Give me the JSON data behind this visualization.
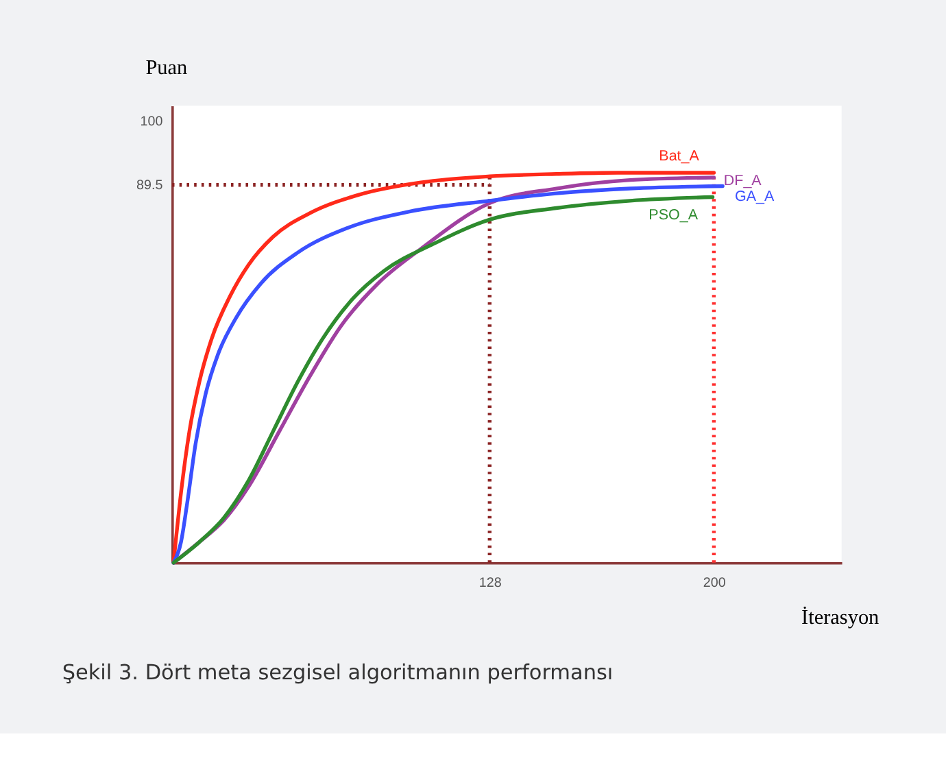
{
  "chart_data": {
    "type": "line",
    "xlabel": "İterasyon",
    "ylabel": "Puan",
    "annotations": [
      "Şekil 3. Dört meta sezgisel algoritmanın performansı"
    ],
    "xlim": [
      26,
      241
    ],
    "ylim": [
      27.5,
      102.5
    ],
    "xticks": [
      128,
      200
    ],
    "yticks": [
      89.5,
      100
    ],
    "grid": false,
    "marker": "none",
    "line_style": "solid",
    "series": [
      {
        "name": "Bat_A",
        "color": "#ff2a1a",
        "x": [
          26.5,
          28.9,
          31.6,
          34.8,
          38.7,
          44.7,
          50.6,
          58.5,
          70.4,
          86.2,
          105.9,
          128,
          149.4,
          169.2,
          200
        ],
        "values": [
          27.5,
          39.0,
          49.1,
          57.2,
          64.2,
          71.3,
          76.4,
          81.0,
          84.9,
          87.9,
          89.9,
          90.9,
          91.3,
          91.5,
          91.5
        ]
      },
      {
        "name": "DF_A",
        "color": "#a040a0",
        "x": [
          26.5,
          34.8,
          42.7,
          50.6,
          60.5,
          70.4,
          80.2,
          92.1,
          105.9,
          128,
          149.4,
          173.1,
          200
        ],
        "values": [
          27.5,
          30.9,
          34.5,
          40.0,
          49.1,
          58.2,
          66.3,
          73.3,
          79.0,
          86.5,
          88.9,
          90.3,
          90.7
        ]
      },
      {
        "name": "GA_A",
        "color": "#3a50ff",
        "x": [
          26.5,
          28.9,
          30.8,
          33.6,
          36.8,
          40.7,
          46.6,
          54.5,
          66.4,
          82.2,
          102,
          128,
          149.4,
          173.1,
          202.8
        ],
        "values": [
          27.5,
          30.9,
          37.0,
          47.1,
          55.2,
          61.6,
          67.7,
          73.3,
          78.4,
          82.4,
          85.1,
          86.9,
          88.1,
          88.9,
          89.3
        ]
      },
      {
        "name": "PSO_A",
        "color": "#2e8b2e",
        "x": [
          26.5,
          34.8,
          42.7,
          50.6,
          58.5,
          66.4,
          74.3,
          84.2,
          94.1,
          109.9,
          128,
          149.4,
          173.1,
          199.6
        ],
        "values": [
          27.5,
          30.9,
          34.9,
          41.0,
          49.1,
          57.2,
          64.2,
          70.9,
          75.4,
          79.8,
          83.8,
          85.7,
          86.9,
          87.5
        ]
      }
    ],
    "ref_lines": [
      {
        "axis": "y",
        "value": 89.5,
        "label": null,
        "color": "#8b2323",
        "line_style": "dotted"
      },
      {
        "axis": "x",
        "value": 128,
        "label": null,
        "color": "#8b2323",
        "line_style": "dotted"
      },
      {
        "axis": "x",
        "value": 200,
        "label": null,
        "color": "#ff3030",
        "line_style": "dotted"
      }
    ]
  }
}
